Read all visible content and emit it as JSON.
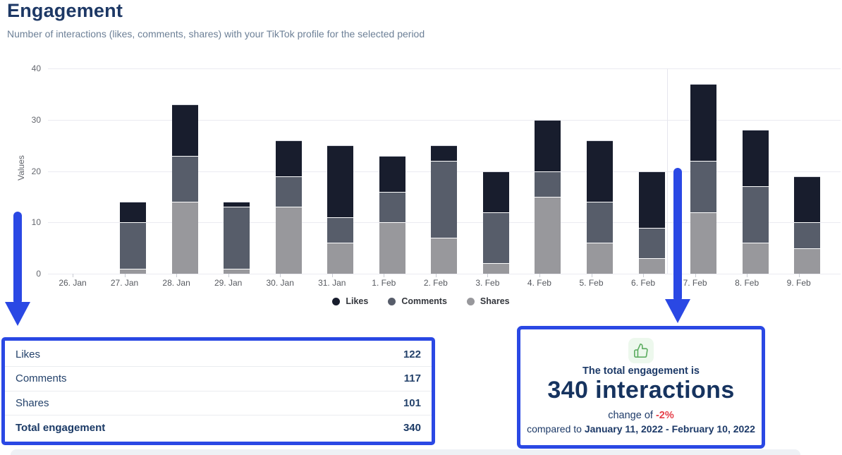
{
  "header": {
    "title": "Engagement",
    "subtitle": "Number of interactions (likes, comments, shares) with your TikTok profile for the selected period"
  },
  "chart_data": {
    "type": "bar",
    "stacked": true,
    "title": "Engagement",
    "xlabel": "",
    "ylabel": "Values",
    "ylim": [
      0,
      40
    ],
    "yticks": [
      0,
      10,
      20,
      30,
      40
    ],
    "grid": "horizontal",
    "legend_position": "bottom",
    "categories": [
      "26. Jan",
      "27. Jan",
      "28. Jan",
      "29. Jan",
      "30. Jan",
      "31. Jan",
      "1. Feb",
      "2. Feb",
      "3. Feb",
      "4. Feb",
      "5. Feb",
      "6. Feb",
      "7. Feb",
      "8. Feb",
      "9. Feb"
    ],
    "series": [
      {
        "name": "Likes",
        "color": "#181d2d",
        "values": [
          0,
          4,
          10,
          1,
          7,
          14,
          7,
          3,
          8,
          10,
          12,
          11,
          15,
          11,
          9
        ]
      },
      {
        "name": "Comments",
        "color": "#575d6a",
        "values": [
          0,
          9,
          9,
          12,
          6,
          5,
          6,
          15,
          10,
          5,
          8,
          6,
          10,
          11,
          5
        ]
      },
      {
        "name": "Shares",
        "color": "#98989c",
        "values": [
          0,
          1,
          14,
          1,
          13,
          6,
          10,
          7,
          2,
          15,
          6,
          3,
          12,
          6,
          5
        ]
      }
    ],
    "daily_totals": [
      0,
      14,
      33,
      14,
      26,
      25,
      23,
      25,
      20,
      30,
      26,
      20,
      37,
      28,
      19
    ]
  },
  "summary_table": {
    "rows": [
      {
        "label": "Likes",
        "value": "122"
      },
      {
        "label": "Comments",
        "value": "117"
      },
      {
        "label": "Shares",
        "value": "101"
      }
    ],
    "total": {
      "label": "Total engagement",
      "value": "340"
    }
  },
  "summary_card": {
    "icon": "thumbs-up",
    "line1": "The total engagement is",
    "headline": "340 interactions",
    "change_prefix": "change of ",
    "change_value": "-2%",
    "compare_prefix": "compared to ",
    "compare_period": "January 11, 2022 - February 10, 2022"
  },
  "colors": {
    "accent_blue": "#2a48e4",
    "navy_text": "#1d3a68",
    "negative_red": "#e5404a",
    "icon_green": "#5fae63",
    "icon_green_bg": "#edf8ed",
    "likes": "#181d2d",
    "comments": "#575d6a",
    "shares": "#98989c"
  }
}
